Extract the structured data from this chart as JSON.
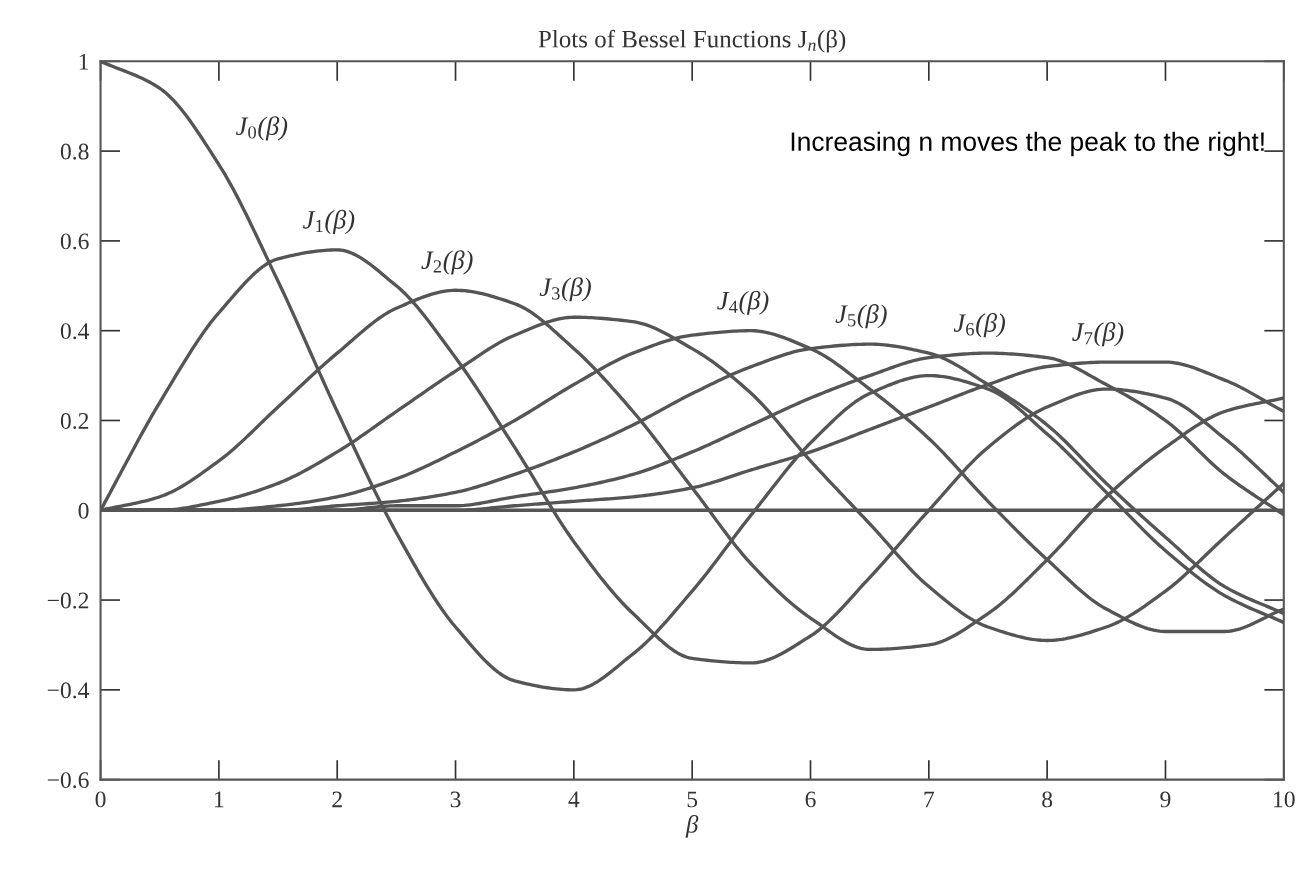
{
  "chart_data": {
    "type": "line",
    "title": "Plots of Bessel Functions J$_{n}$(β)",
    "xlabel": "β",
    "x": [
      0,
      0.5,
      1,
      1.5,
      2,
      2.5,
      3,
      3.5,
      4,
      4.5,
      5,
      5.5,
      6,
      6.5,
      7,
      7.5,
      8,
      8.5,
      9,
      9.5,
      10
    ],
    "series": [
      {
        "name": "J$_{0}$(β)",
        "color": "#555555",
        "values": [
          1,
          0.94,
          0.77,
          0.51,
          0.22,
          -0.05,
          -0.26,
          -0.38,
          -0.4,
          -0.32,
          -0.18,
          -0.01,
          0.15,
          0.26,
          0.3,
          0.27,
          0.17,
          0.04,
          -0.09,
          -0.19,
          -0.25
        ]
      },
      {
        "name": "J$_{1}$(β)",
        "color": "#555555",
        "values": [
          0,
          0.24,
          0.44,
          0.56,
          0.58,
          0.5,
          0.34,
          0.14,
          -0.07,
          -0.23,
          -0.33,
          -0.34,
          -0.28,
          -0.15,
          0.0,
          0.14,
          0.23,
          0.27,
          0.25,
          0.16,
          0.04
        ]
      },
      {
        "name": "J$_{2}$(β)",
        "color": "#555555",
        "values": [
          0,
          0.03,
          0.11,
          0.23,
          0.35,
          0.45,
          0.49,
          0.46,
          0.36,
          0.22,
          0.05,
          -0.12,
          -0.24,
          -0.31,
          -0.3,
          -0.23,
          -0.11,
          0.03,
          0.14,
          0.22,
          0.25
        ]
      },
      {
        "name": "J$_{3}$(β)",
        "color": "#555555",
        "values": [
          0,
          0.0,
          0.02,
          0.06,
          0.13,
          0.22,
          0.31,
          0.39,
          0.43,
          0.42,
          0.36,
          0.26,
          0.11,
          -0.03,
          -0.17,
          -0.26,
          -0.29,
          -0.26,
          -0.18,
          -0.06,
          0.06
        ]
      },
      {
        "name": "J$_{4}$(β)",
        "color": "#555555",
        "values": [
          0,
          0,
          0.0,
          0.01,
          0.03,
          0.07,
          0.13,
          0.2,
          0.28,
          0.35,
          0.39,
          0.4,
          0.36,
          0.27,
          0.16,
          0.02,
          -0.11,
          -0.22,
          -0.27,
          -0.27,
          -0.22
        ]
      },
      {
        "name": "J$_{5}$(β)",
        "color": "#555555",
        "values": [
          0,
          0,
          0,
          0,
          0.01,
          0.02,
          0.04,
          0.08,
          0.13,
          0.19,
          0.26,
          0.32,
          0.36,
          0.37,
          0.35,
          0.28,
          0.19,
          0.06,
          -0.06,
          -0.17,
          -0.23
        ]
      },
      {
        "name": "J$_{6}$(β)",
        "color": "#555555",
        "values": [
          0,
          0,
          0,
          0,
          0,
          0.01,
          0.01,
          0.03,
          0.05,
          0.08,
          0.13,
          0.19,
          0.25,
          0.3,
          0.34,
          0.35,
          0.34,
          0.28,
          0.2,
          0.08,
          -0.01
        ]
      },
      {
        "name": "J$_{7}$(β)",
        "color": "#555555",
        "values": [
          0,
          0,
          0,
          0,
          0,
          0,
          0.0,
          0.01,
          0.02,
          0.03,
          0.05,
          0.09,
          0.13,
          0.18,
          0.23,
          0.28,
          0.32,
          0.33,
          0.33,
          0.29,
          0.22
        ]
      }
    ],
    "ref_lines": [
      {
        "axis": "y",
        "value": 0,
        "color": "#555555"
      }
    ],
    "annotations": [
      "Increasing n moves the peak to the right!"
    ],
    "xlim": [
      0,
      10
    ],
    "xticks": [
      0,
      1,
      2,
      3,
      4,
      5,
      6,
      7,
      8,
      9,
      10
    ],
    "ylim": [
      -0.6,
      1
    ],
    "yticks": [
      {
        "value": -0.6,
        "label": "−0.6"
      },
      {
        "value": -0.4,
        "label": "−0.4"
      },
      {
        "value": -0.2,
        "label": "−0.2"
      },
      0,
      0.2,
      0.4,
      0.6,
      0.8,
      1
    ],
    "grid": false,
    "legend": false,
    "marker": "none",
    "line_style": "solid"
  }
}
